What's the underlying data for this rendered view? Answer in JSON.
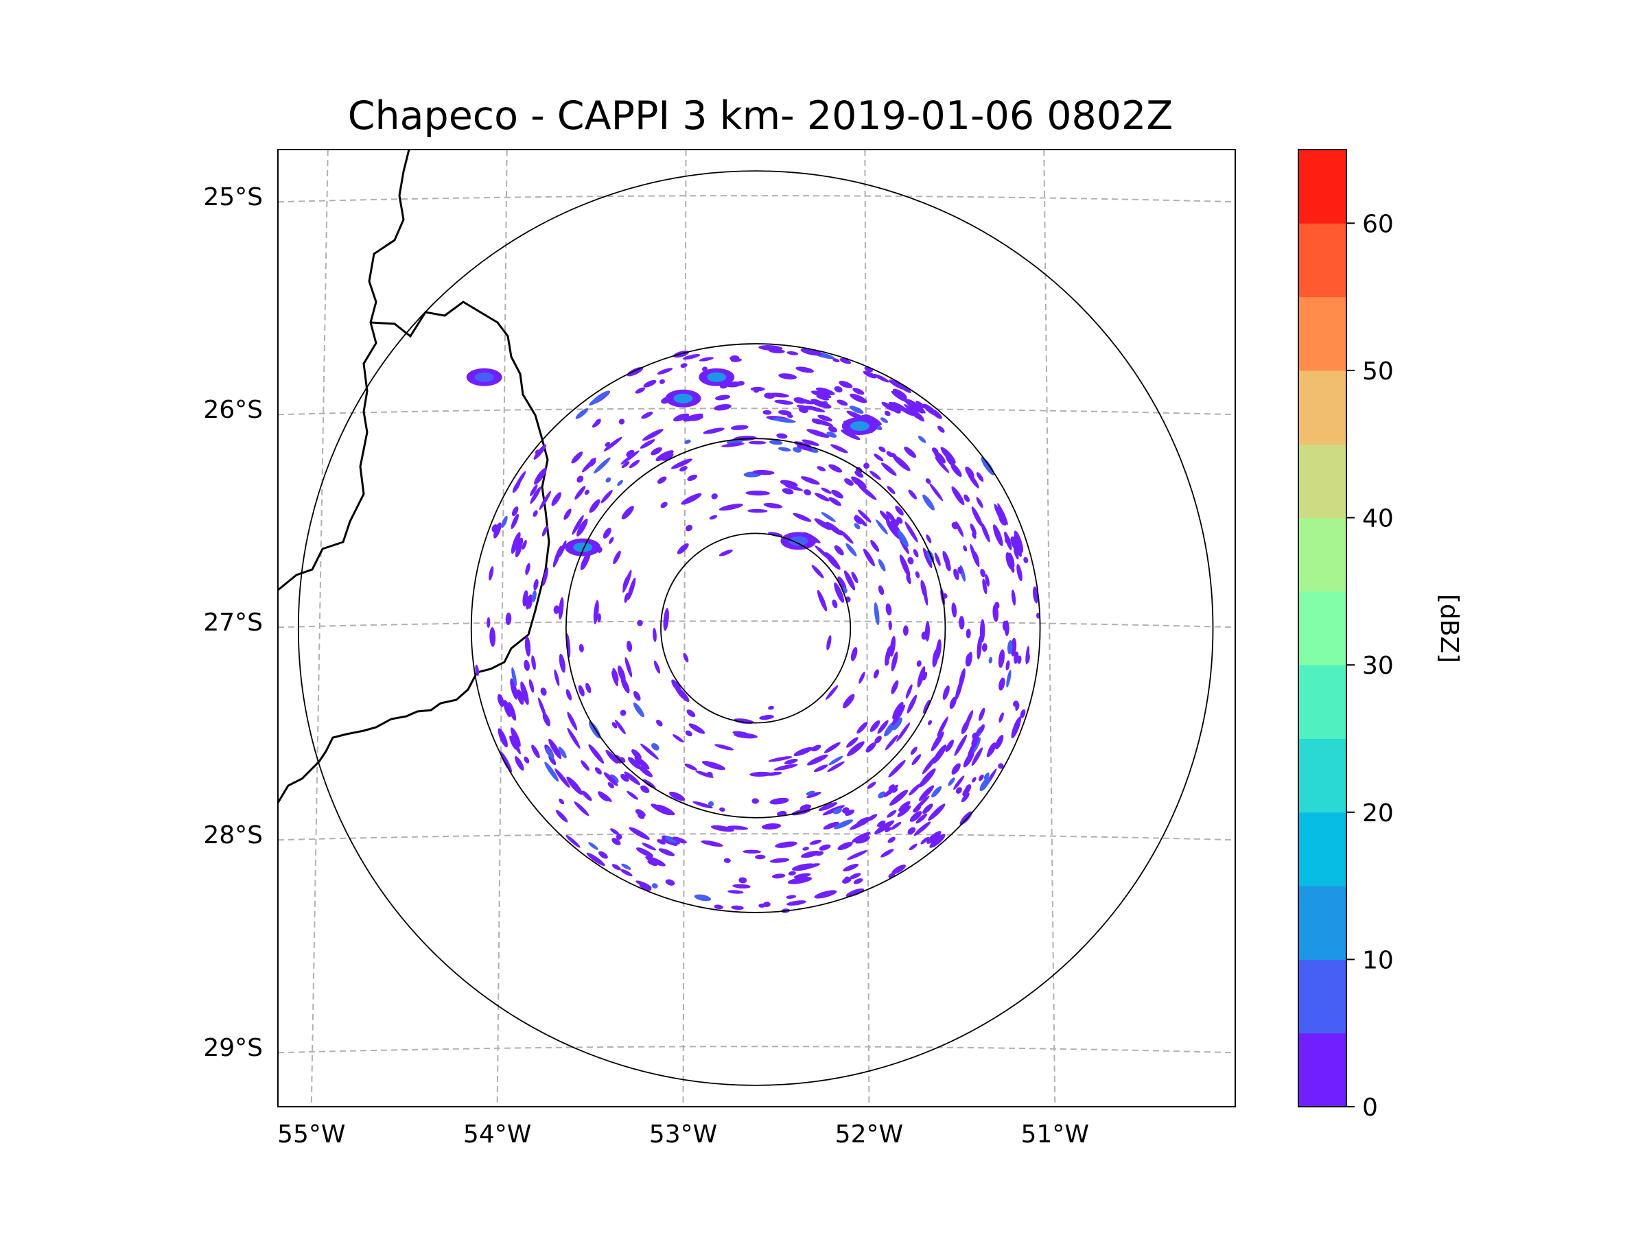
{
  "chart_data": {
    "type": "radar_ppi",
    "title": "Chapeco - CAPPI 3 km- 2019-01-06 0802Z",
    "x_range": [
      -55.18,
      -50.03
    ],
    "y_range": [
      -29.28,
      -24.78
    ],
    "lon_ticks": [
      {
        "value": -55,
        "label": "55°W"
      },
      {
        "value": -54,
        "label": "54°W"
      },
      {
        "value": -53,
        "label": "53°W"
      },
      {
        "value": -52,
        "label": "52°W"
      },
      {
        "value": -51,
        "label": "51°W"
      }
    ],
    "lat_ticks": [
      {
        "value": -25,
        "label": "25°S"
      },
      {
        "value": -26,
        "label": "26°S"
      },
      {
        "value": -27,
        "label": "27°S"
      },
      {
        "value": -28,
        "label": "28°S"
      },
      {
        "value": -29,
        "label": "29°S"
      }
    ],
    "radar_center": {
      "lon": -52.61,
      "lat": -27.03
    },
    "range_rings_deg_lon": [
      0.51,
      1.02,
      1.53,
      2.46
    ],
    "colorbar": {
      "label": "[dBZ]",
      "levels": [
        0,
        5,
        10,
        15,
        20,
        25,
        30,
        35,
        40,
        45,
        50,
        55,
        60,
        65
      ],
      "tick_values": [
        0,
        10,
        20,
        30,
        40,
        50,
        60
      ],
      "tick_labels": [
        "0",
        "10",
        "20",
        "30",
        "40",
        "50",
        "60"
      ],
      "colors": [
        "#7020ff",
        "#4660f5",
        "#1e96e6",
        "#08bde3",
        "#2ad9d4",
        "#50f0c0",
        "#82fea8",
        "#a6f590",
        "#cddb82",
        "#f0be6e",
        "#ff8c4b",
        "#ff5a30",
        "#ff1e12"
      ]
    },
    "echo_cells": [
      {
        "lon": -53.0,
        "lat": -25.95,
        "dbz": 10
      },
      {
        "lon": -52.82,
        "lat": -25.85,
        "dbz": 12
      },
      {
        "lon": -52.05,
        "lat": -26.08,
        "dbz": 14
      },
      {
        "lon": -53.54,
        "lat": -26.65,
        "dbz": 10
      },
      {
        "lon": -52.38,
        "lat": -26.62,
        "dbz": 8
      },
      {
        "lon": -54.07,
        "lat": -25.85,
        "dbz": 6
      }
    ],
    "coast_borders": "Argentina / Brazil border lines (decorative)"
  }
}
